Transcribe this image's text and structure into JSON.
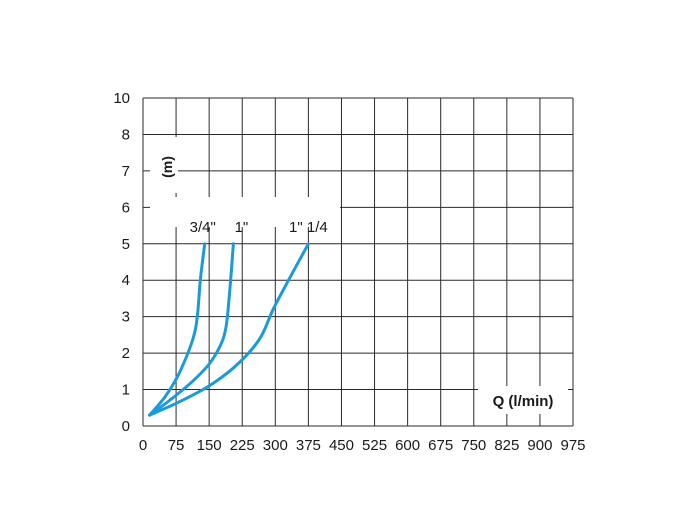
{
  "chart_data": {
    "type": "line",
    "xlabel": "Q (l/min)",
    "ylabel": "(m)",
    "x_ticks": [
      "0",
      "75",
      "150",
      "225",
      "300",
      "375",
      "450",
      "525",
      "600",
      "675",
      "750",
      "825",
      "900",
      "975"
    ],
    "y_ticks": [
      "0",
      "1",
      "2",
      "3",
      "4",
      "5",
      "6",
      "7",
      "8",
      "10"
    ],
    "xlim": [
      0,
      975
    ],
    "ylim": [
      0,
      10
    ],
    "grid": true,
    "line_color": "#1a9bd7",
    "series": [
      {
        "name": "3/4\"",
        "x": [
          15,
          50,
          80,
          105,
          118,
          124,
          130,
          140
        ],
        "y": [
          0.3,
          0.8,
          1.4,
          2.1,
          2.6,
          3.1,
          4.0,
          5.0
        ]
      },
      {
        "name": "1\"",
        "x": [
          15,
          60,
          110,
          150,
          175,
          188,
          196,
          205
        ],
        "y": [
          0.3,
          0.7,
          1.2,
          1.7,
          2.2,
          2.7,
          3.6,
          5.0
        ]
      },
      {
        "name": "1\" 1/4",
        "x": [
          15,
          80,
          150,
          215,
          265,
          295,
          330,
          375
        ],
        "y": [
          0.3,
          0.65,
          1.1,
          1.7,
          2.4,
          3.2,
          4.0,
          5.0
        ]
      }
    ]
  }
}
